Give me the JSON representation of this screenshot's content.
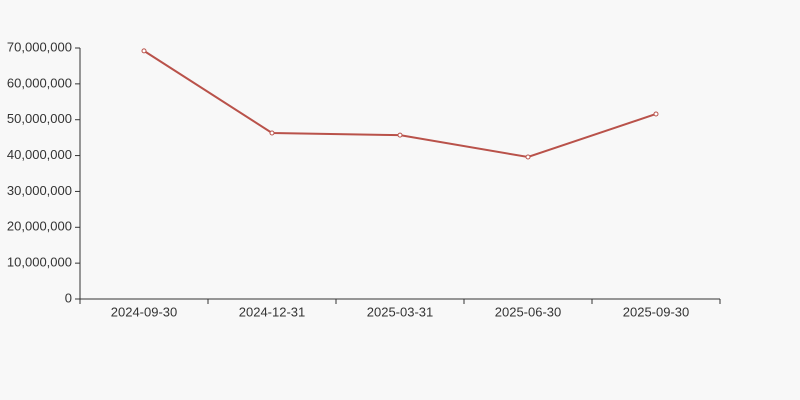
{
  "chart_data": {
    "type": "line",
    "categories": [
      "2024-09-30",
      "2024-12-31",
      "2025-03-31",
      "2025-06-30",
      "2025-09-30"
    ],
    "series": [
      {
        "color": "#b9524a",
        "values": [
          69200000,
          46300000,
          45700000,
          39600000,
          51600000
        ]
      }
    ],
    "ylim": [
      0,
      70000000
    ],
    "yticks": [
      0,
      {
        "value": 10000000,
        "label": "10,000,000"
      },
      {
        "value": 20000000,
        "label": "20,000,000"
      },
      {
        "value": 30000000,
        "label": "30,000,000"
      },
      {
        "value": 40000000,
        "label": "40,000,000"
      },
      {
        "value": 50000000,
        "label": "50,000,000"
      },
      {
        "value": 60000000,
        "label": "60,000,000"
      },
      {
        "value": 70000000,
        "label": "70,000,000"
      }
    ],
    "grid": false
  }
}
